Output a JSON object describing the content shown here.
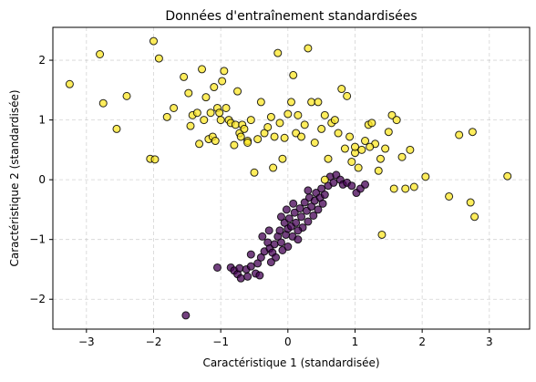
{
  "chart_data": {
    "type": "scatter",
    "title": "Données d'entraînement standardisées",
    "xlabel": "Caractéristique 1 (standardisée)",
    "ylabel": "Caractéristique 2 (standardisée)",
    "xlim": [
      -3.5,
      3.6
    ],
    "ylim": [
      -2.5,
      2.55
    ],
    "xticks": [
      -3,
      -2,
      -1,
      0,
      1,
      2,
      3
    ],
    "yticks": [
      -2,
      -1,
      0,
      1,
      2
    ],
    "xtick_labels": [
      "−3",
      "−2",
      "−1",
      "0",
      "1",
      "2",
      "3"
    ],
    "ytick_labels": [
      "−2",
      "−1",
      "0",
      "1",
      "2"
    ],
    "grid": true,
    "legend": "none",
    "colors": {
      "class_0": "#440154",
      "class_1": "#fde725",
      "edge": "#000000",
      "grid": "#b0b0b0"
    },
    "series": [
      {
        "class": 0,
        "points": [
          [
            -1.52,
            -2.27
          ],
          [
            -1.05,
            -1.47
          ],
          [
            -0.85,
            -1.47
          ],
          [
            -0.8,
            -1.52
          ],
          [
            -0.75,
            -1.58
          ],
          [
            -0.7,
            -1.65
          ],
          [
            -0.72,
            -1.48
          ],
          [
            -0.62,
            -1.5
          ],
          [
            -0.6,
            -1.62
          ],
          [
            -0.55,
            -1.45
          ],
          [
            -0.48,
            -1.57
          ],
          [
            -0.42,
            -1.6
          ],
          [
            -0.45,
            -1.4
          ],
          [
            -0.4,
            -1.3
          ],
          [
            -0.35,
            -1.2
          ],
          [
            -0.3,
            -1.05
          ],
          [
            -0.27,
            -1.15
          ],
          [
            -0.23,
            -1.22
          ],
          [
            -0.2,
            -1.08
          ],
          [
            -0.18,
            -1.3
          ],
          [
            -0.15,
            -0.95
          ],
          [
            -0.12,
            -0.85
          ],
          [
            -0.1,
            -1.05
          ],
          [
            -0.08,
            -1.18
          ],
          [
            -0.05,
            -0.72
          ],
          [
            -0.03,
            -0.92
          ],
          [
            0.0,
            -0.82
          ],
          [
            0.02,
            -0.65
          ],
          [
            0.05,
            -0.78
          ],
          [
            0.07,
            -0.95
          ],
          [
            0.1,
            -0.55
          ],
          [
            0.12,
            -0.72
          ],
          [
            0.15,
            -1.0
          ],
          [
            0.18,
            -0.48
          ],
          [
            0.2,
            -0.62
          ],
          [
            0.22,
            -0.8
          ],
          [
            0.25,
            -0.38
          ],
          [
            0.28,
            -0.52
          ],
          [
            0.3,
            -0.7
          ],
          [
            0.32,
            -0.3
          ],
          [
            0.35,
            -0.45
          ],
          [
            0.38,
            -0.6
          ],
          [
            0.4,
            -0.35
          ],
          [
            0.42,
            -0.22
          ],
          [
            0.45,
            -0.5
          ],
          [
            0.48,
            -0.3
          ],
          [
            0.5,
            -0.15
          ],
          [
            0.52,
            -0.4
          ],
          [
            0.55,
            -0.25
          ],
          [
            0.6,
            -0.1
          ],
          [
            0.63,
            0.05
          ],
          [
            0.68,
            -0.05
          ],
          [
            0.72,
            0.08
          ],
          [
            0.78,
            0.0
          ],
          [
            0.82,
            -0.08
          ],
          [
            0.88,
            -0.05
          ],
          [
            0.95,
            -0.1
          ],
          [
            1.02,
            -0.22
          ],
          [
            1.08,
            -0.15
          ],
          [
            1.15,
            -0.08
          ],
          [
            -0.28,
            -0.85
          ],
          [
            -0.38,
            -0.95
          ],
          [
            -0.1,
            -0.62
          ],
          [
            0.0,
            -1.12
          ],
          [
            -0.25,
            -1.38
          ],
          [
            -0.55,
            -1.25
          ],
          [
            0.08,
            -0.4
          ],
          [
            0.3,
            -0.18
          ],
          [
            0.15,
            -0.85
          ],
          [
            -0.02,
            -0.5
          ]
        ]
      },
      {
        "class": 1,
        "points": [
          [
            -3.25,
            1.6
          ],
          [
            -2.8,
            2.1
          ],
          [
            -2.75,
            1.28
          ],
          [
            -2.55,
            0.85
          ],
          [
            -2.4,
            1.4
          ],
          [
            -2.05,
            0.35
          ],
          [
            -2.0,
            2.32
          ],
          [
            -1.98,
            0.34
          ],
          [
            -1.92,
            2.03
          ],
          [
            -1.8,
            1.05
          ],
          [
            -1.7,
            1.2
          ],
          [
            -1.48,
            1.45
          ],
          [
            -1.45,
            0.9
          ],
          [
            -1.42,
            1.08
          ],
          [
            -1.35,
            1.12
          ],
          [
            -1.32,
            0.6
          ],
          [
            -1.28,
            1.85
          ],
          [
            -1.25,
            1.0
          ],
          [
            -1.22,
            1.38
          ],
          [
            -1.18,
            0.68
          ],
          [
            -1.15,
            1.12
          ],
          [
            -1.12,
            0.72
          ],
          [
            -1.1,
            1.55
          ],
          [
            -1.08,
            0.65
          ],
          [
            -1.05,
            1.2
          ],
          [
            -1.02,
            1.12
          ],
          [
            -1.0,
            1.0
          ],
          [
            -0.98,
            1.65
          ],
          [
            -0.95,
            1.82
          ],
          [
            -0.92,
            1.2
          ],
          [
            -0.88,
            1.0
          ],
          [
            -0.85,
            0.95
          ],
          [
            -0.8,
            0.58
          ],
          [
            -0.78,
            0.92
          ],
          [
            -0.75,
            1.48
          ],
          [
            -0.72,
            0.78
          ],
          [
            -0.68,
            0.92
          ],
          [
            -0.65,
            0.85
          ],
          [
            -0.6,
            0.65
          ],
          [
            -0.55,
            1.0
          ],
          [
            -0.5,
            0.12
          ],
          [
            -0.45,
            0.68
          ],
          [
            -0.4,
            1.3
          ],
          [
            -0.35,
            0.78
          ],
          [
            -0.3,
            0.88
          ],
          [
            -0.25,
            1.05
          ],
          [
            -0.22,
            0.2
          ],
          [
            -0.2,
            0.72
          ],
          [
            -0.15,
            2.12
          ],
          [
            -0.12,
            0.95
          ],
          [
            -0.08,
            0.35
          ],
          [
            -0.05,
            0.7
          ],
          [
            0.0,
            1.1
          ],
          [
            0.05,
            1.3
          ],
          [
            0.08,
            1.75
          ],
          [
            0.12,
            0.78
          ],
          [
            0.15,
            1.08
          ],
          [
            0.2,
            0.72
          ],
          [
            0.25,
            0.92
          ],
          [
            0.3,
            2.2
          ],
          [
            0.35,
            1.3
          ],
          [
            0.4,
            0.62
          ],
          [
            0.45,
            1.3
          ],
          [
            0.5,
            0.85
          ],
          [
            0.55,
            1.08
          ],
          [
            0.6,
            0.35
          ],
          [
            0.65,
            0.95
          ],
          [
            0.7,
            1.0
          ],
          [
            0.75,
            0.78
          ],
          [
            0.8,
            1.52
          ],
          [
            0.85,
            0.52
          ],
          [
            0.88,
            1.4
          ],
          [
            0.92,
            0.72
          ],
          [
            0.95,
            0.3
          ],
          [
            1.0,
            0.45
          ],
          [
            1.05,
            0.2
          ],
          [
            1.1,
            0.5
          ],
          [
            1.15,
            0.65
          ],
          [
            1.2,
            0.92
          ],
          [
            1.25,
            0.95
          ],
          [
            1.3,
            0.6
          ],
          [
            1.35,
            0.15
          ],
          [
            1.38,
            0.35
          ],
          [
            1.4,
            -0.92
          ],
          [
            1.45,
            0.52
          ],
          [
            1.5,
            0.8
          ],
          [
            1.55,
            1.08
          ],
          [
            1.58,
            -0.15
          ],
          [
            1.62,
            1.0
          ],
          [
            1.7,
            0.38
          ],
          [
            1.75,
            -0.15
          ],
          [
            1.82,
            0.5
          ],
          [
            1.88,
            -0.12
          ],
          [
            2.05,
            0.05
          ],
          [
            2.4,
            -0.28
          ],
          [
            2.55,
            0.75
          ],
          [
            2.72,
            -0.38
          ],
          [
            2.75,
            0.8
          ],
          [
            2.78,
            -0.62
          ],
          [
            3.27,
            0.06
          ],
          [
            1.22,
            0.55
          ],
          [
            -0.7,
            0.72
          ],
          [
            -1.55,
            1.72
          ],
          [
            0.55,
            0.0
          ],
          [
            1.0,
            0.55
          ],
          [
            -0.6,
            0.62
          ]
        ]
      }
    ]
  }
}
